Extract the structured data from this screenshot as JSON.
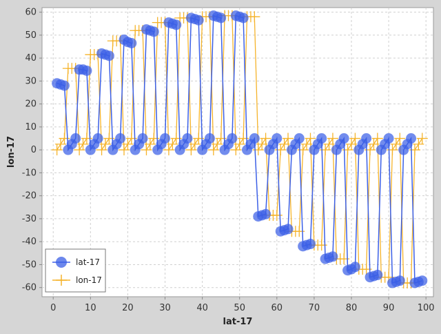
{
  "chart_data": {
    "type": "line",
    "xlabel": "lat-17",
    "ylabel": "lon-17",
    "xlim": [
      -3,
      102
    ],
    "ylim": [
      -64,
      62
    ],
    "x_ticks": [
      0,
      10,
      20,
      30,
      40,
      50,
      60,
      70,
      80,
      90,
      100
    ],
    "y_ticks": [
      60,
      50,
      40,
      30,
      20,
      10,
      0,
      -10,
      -20,
      -30,
      -40,
      -50,
      -60
    ],
    "grid": true,
    "legend_position": "bottom-left",
    "colors": {
      "lat": "#3b5fe6",
      "lon": "#f5b32a",
      "background": "#ffffff",
      "frame": "#d6d6d6"
    },
    "x": [
      1,
      2,
      3,
      4,
      5,
      6,
      7,
      8,
      9,
      10,
      11,
      12,
      13,
      14,
      15,
      16,
      17,
      18,
      19,
      20,
      21,
      22,
      23,
      24,
      25,
      26,
      27,
      28,
      29,
      30,
      31,
      32,
      33,
      34,
      35,
      36,
      37,
      38,
      39,
      40,
      41,
      42,
      43,
      44,
      45,
      46,
      47,
      48,
      49,
      50,
      51,
      52,
      53,
      54,
      55,
      56,
      57,
      58,
      59,
      60,
      61,
      62,
      63,
      64,
      65,
      66,
      67,
      68,
      69,
      70,
      71,
      72,
      73,
      74,
      75,
      76,
      77,
      78,
      79,
      80,
      81,
      82,
      83,
      84,
      85,
      86,
      87,
      88,
      89,
      90,
      91,
      92,
      93,
      94,
      95,
      96,
      97,
      98,
      99
    ],
    "series": [
      {
        "name": "lat-17",
        "marker": "circle",
        "values": [
          29,
          28.5,
          28,
          0,
          2.5,
          5,
          35,
          35,
          34.5,
          0,
          2.5,
          5,
          42,
          41.5,
          41,
          0,
          2.5,
          5,
          48,
          47,
          46.5,
          0,
          2.5,
          5,
          52.5,
          52,
          51.5,
          0,
          2.5,
          5,
          55.5,
          55,
          54.5,
          0,
          2.5,
          5,
          57.5,
          57,
          56.5,
          0,
          2.5,
          5,
          58.5,
          58,
          57.5,
          0,
          2.5,
          5,
          58.5,
          58,
          57.5,
          0,
          2.5,
          5,
          -29,
          -28.5,
          -28,
          0,
          2.5,
          5,
          -35.5,
          -35,
          -34.5,
          0,
          2.5,
          5,
          -42,
          -41.5,
          -41,
          0,
          2.5,
          5,
          -47.5,
          -47,
          -46.5,
          0,
          2.5,
          5,
          -52.5,
          -52,
          -51,
          0,
          2.5,
          5,
          -55.5,
          -55,
          -54.5,
          0,
          2.5,
          5,
          -58,
          -57.5,
          -57,
          0,
          2.5,
          5,
          -58,
          -57.5,
          -57
        ]
      },
      {
        "name": "lon-17",
        "marker": "plus",
        "values": [
          0,
          2.5,
          5,
          35.5,
          35.5,
          35.5,
          0,
          2.5,
          5,
          41.5,
          41.5,
          41.5,
          0,
          2.5,
          5,
          47.5,
          47.5,
          47.5,
          0,
          2.5,
          5,
          52,
          52,
          52,
          0,
          2.5,
          5,
          55.5,
          55.5,
          55.5,
          0,
          2.5,
          5,
          57.5,
          57.5,
          57.5,
          0,
          2.5,
          5,
          58,
          58,
          58,
          0,
          2.5,
          5,
          58.5,
          58.5,
          58.5,
          0,
          2.5,
          5,
          58,
          58,
          58,
          0,
          2.5,
          5,
          -28.5,
          -28.5,
          -28.5,
          0,
          2.5,
          5,
          -35.5,
          -35.5,
          -35.5,
          0,
          2.5,
          5,
          -41.5,
          -41.5,
          -41.5,
          0,
          2.5,
          5,
          -47.5,
          -47.5,
          -47.5,
          0,
          2.5,
          5,
          -52,
          -52,
          -52,
          0,
          2.5,
          5,
          -55.5,
          -55.5,
          -55.5,
          0,
          2.5,
          5,
          -58,
          -58,
          -58,
          0,
          2.5,
          5
        ]
      }
    ]
  }
}
